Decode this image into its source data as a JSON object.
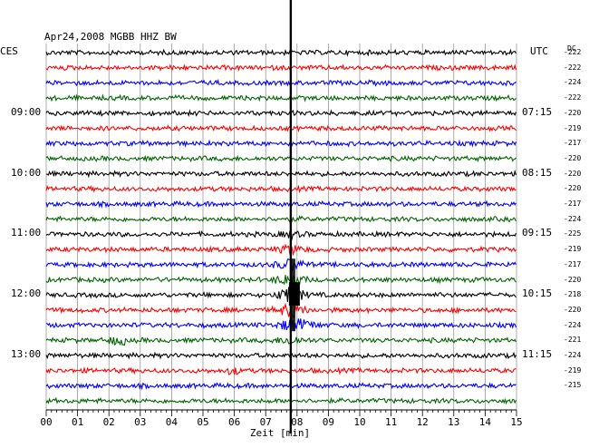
{
  "header": {
    "title": "Apr24,2008   MGBB HHZ BW",
    "left_tz": "CES",
    "right_tz": "UTC",
    "dc_label": "DC"
  },
  "chart_data": {
    "type": "line",
    "title": "Apr24,2008   MGBB HHZ BW",
    "xlabel": "Zeit [min]",
    "ylabel": "",
    "xlim": [
      0,
      15
    ],
    "x_ticks": [
      "00",
      "01",
      "02",
      "03",
      "04",
      "05",
      "06",
      "07",
      "08",
      "09",
      "10",
      "11",
      "12",
      "13",
      "14",
      "15"
    ],
    "grid": true,
    "trace_colors": [
      "#000000",
      "#ff0000",
      "#0000ff",
      "#006400"
    ],
    "row_count": 24,
    "left_time_labels": [
      {
        "row": 4,
        "text": "09:00"
      },
      {
        "row": 8,
        "text": "10:00"
      },
      {
        "row": 12,
        "text": "11:00"
      },
      {
        "row": 16,
        "text": "12:00"
      },
      {
        "row": 20,
        "text": "13:00"
      }
    ],
    "right_time_labels": [
      {
        "row": 4,
        "text": "07:15"
      },
      {
        "row": 8,
        "text": "08:15"
      },
      {
        "row": 12,
        "text": "09:15"
      },
      {
        "row": 16,
        "text": "10:15"
      },
      {
        "row": 20,
        "text": "11:15"
      }
    ],
    "dc_offsets": [
      "-222",
      "-222",
      "-224",
      "-222",
      "-220",
      "-219",
      "-217",
      "-220",
      "-220",
      "-220",
      "-217",
      "-224",
      "-225",
      "-219",
      "-217",
      "-220",
      "-218",
      "-220",
      "-224",
      "-221",
      "-224",
      "-219",
      "-215"
    ],
    "event": {
      "minute": 7.8,
      "description": "earthquake onset visible across traces"
    }
  }
}
